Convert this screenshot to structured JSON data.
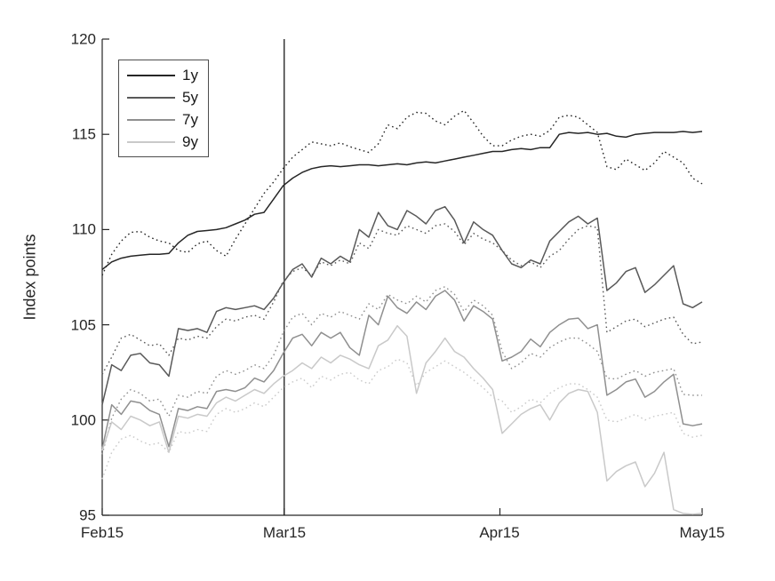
{
  "figure": {
    "background_color": "#ffffff",
    "axis_color": "#262626"
  },
  "chart_data": {
    "type": "line",
    "title": "",
    "xlabel": "",
    "ylabel": "Index points",
    "ylim": [
      95,
      120
    ],
    "y_ticks": [
      95,
      100,
      105,
      110,
      115,
      120
    ],
    "y_tick_labels": [
      "95",
      "100",
      "105",
      "110",
      "115",
      "120"
    ],
    "x_tick_labels": [
      "Feb15",
      "Mar15",
      "Apr15",
      "May15"
    ],
    "x_tick_days": [
      0,
      27,
      59,
      89
    ],
    "x_range_days": [
      0,
      89
    ],
    "grid": false,
    "box": false,
    "event_line_day": 27,
    "legend": {
      "position": "top-left",
      "entries": [
        {
          "label": "1y",
          "color": "#262626"
        },
        {
          "label": "5y",
          "color": "#595959"
        },
        {
          "label": "7y",
          "color": "#8f8f8f"
        },
        {
          "label": "9y",
          "color": "#c9c9c9"
        }
      ]
    },
    "series": [
      {
        "name": "1y",
        "style": "solid",
        "color": "#262626",
        "values": [
          107.9,
          108.3,
          108.5,
          108.6,
          108.65,
          108.7,
          108.7,
          108.75,
          109.3,
          109.7,
          109.9,
          109.95,
          110.0,
          110.1,
          110.3,
          110.5,
          110.8,
          110.9,
          111.6,
          112.3,
          112.7,
          113.0,
          113.2,
          113.3,
          113.35,
          113.3,
          113.35,
          113.4,
          113.4,
          113.35,
          113.4,
          113.45,
          113.4,
          113.5,
          113.55,
          113.5,
          113.6,
          113.7,
          113.8,
          113.9,
          114.0,
          114.1,
          114.1,
          114.2,
          114.25,
          114.2,
          114.3,
          114.3,
          115.0,
          115.1,
          115.05,
          115.1,
          115.0,
          115.05,
          114.9,
          114.85,
          115.0,
          115.05,
          115.1,
          115.1,
          115.1,
          115.15,
          115.1,
          115.15
        ]
      },
      {
        "name": "1y dotted",
        "style": "dotted",
        "color": "#262626",
        "values": [
          107.6,
          108.7,
          109.4,
          109.85,
          109.9,
          109.6,
          109.4,
          109.3,
          108.9,
          108.8,
          109.25,
          109.4,
          108.9,
          108.6,
          109.5,
          110.3,
          111.1,
          111.9,
          112.5,
          113.2,
          113.8,
          114.2,
          114.6,
          114.5,
          114.4,
          114.55,
          114.35,
          114.2,
          114.05,
          114.5,
          115.5,
          115.3,
          115.9,
          116.15,
          116.1,
          115.7,
          115.5,
          115.95,
          116.25,
          115.6,
          114.9,
          114.4,
          114.4,
          114.7,
          114.9,
          115.0,
          114.9,
          115.2,
          115.9,
          116.0,
          115.9,
          115.5,
          115.1,
          113.3,
          113.15,
          113.7,
          113.4,
          113.1,
          113.5,
          114.1,
          113.8,
          113.5,
          112.7,
          112.4
        ]
      },
      {
        "name": "5y",
        "style": "solid",
        "color": "#595959",
        "values": [
          100.8,
          102.9,
          102.6,
          103.4,
          103.5,
          103.0,
          102.9,
          102.3,
          104.8,
          104.7,
          104.8,
          104.6,
          105.7,
          105.9,
          105.8,
          105.9,
          106.0,
          105.8,
          106.4,
          107.2,
          107.9,
          108.2,
          107.5,
          108.5,
          108.2,
          108.6,
          108.3,
          110.0,
          109.6,
          110.9,
          110.2,
          110.0,
          111.0,
          110.7,
          110.3,
          111.0,
          111.2,
          110.5,
          109.3,
          110.4,
          110.0,
          109.7,
          108.9,
          108.2,
          108.0,
          108.4,
          108.2,
          109.4,
          109.9,
          110.4,
          110.7,
          110.3,
          110.6,
          106.8,
          107.2,
          107.8,
          108.0,
          106.7,
          107.1,
          107.6,
          108.1,
          106.1,
          105.9,
          106.2
        ]
      },
      {
        "name": "5y dotted",
        "style": "dotted",
        "color": "#595959",
        "values": [
          102.4,
          103.3,
          104.3,
          104.5,
          104.2,
          103.9,
          104.0,
          103.4,
          104.3,
          104.2,
          104.4,
          104.3,
          104.9,
          105.3,
          105.2,
          105.4,
          105.5,
          105.3,
          106.2,
          107.3,
          107.8,
          108.0,
          107.6,
          108.3,
          108.1,
          108.4,
          108.2,
          109.3,
          109.0,
          110.0,
          109.8,
          109.7,
          110.2,
          110.0,
          109.8,
          110.2,
          110.3,
          109.9,
          109.2,
          109.8,
          109.5,
          109.3,
          108.9,
          108.4,
          108.1,
          108.3,
          108.0,
          108.6,
          108.9,
          109.5,
          110.0,
          110.2,
          110.1,
          104.6,
          104.9,
          105.2,
          105.3,
          104.9,
          105.1,
          105.3,
          105.4,
          104.5,
          104.0,
          104.1
        ]
      },
      {
        "name": "7y",
        "style": "solid",
        "color": "#8f8f8f",
        "values": [
          98.5,
          100.8,
          100.3,
          101.0,
          100.9,
          100.5,
          100.3,
          98.6,
          100.6,
          100.5,
          100.7,
          100.6,
          101.5,
          101.6,
          101.5,
          101.7,
          102.2,
          102.0,
          102.6,
          103.5,
          104.3,
          104.5,
          103.9,
          104.6,
          104.3,
          104.6,
          103.8,
          103.4,
          105.5,
          105.0,
          106.5,
          105.9,
          105.6,
          106.2,
          105.8,
          106.5,
          106.8,
          106.3,
          105.2,
          106.0,
          105.7,
          105.3,
          103.1,
          103.3,
          103.6,
          104.25,
          103.85,
          104.6,
          105.0,
          105.3,
          105.35,
          104.8,
          105.0,
          101.3,
          101.6,
          102.0,
          102.15,
          101.2,
          101.5,
          102.0,
          102.4,
          99.8,
          99.7,
          99.8
        ]
      },
      {
        "name": "7y dotted",
        "style": "dotted",
        "color": "#8f8f8f",
        "values": [
          98.2,
          100.1,
          101.1,
          101.6,
          101.4,
          101.0,
          101.1,
          100.2,
          101.3,
          101.2,
          101.5,
          101.4,
          102.3,
          102.6,
          102.4,
          102.6,
          102.9,
          102.7,
          103.4,
          104.6,
          105.4,
          105.6,
          105.0,
          105.6,
          105.4,
          105.7,
          105.5,
          105.3,
          106.1,
          105.8,
          106.6,
          106.3,
          106.1,
          106.5,
          106.2,
          106.8,
          107.0,
          106.6,
          105.7,
          106.3,
          106.0,
          105.5,
          103.6,
          102.7,
          103.0,
          103.5,
          103.3,
          103.8,
          104.1,
          104.3,
          104.3,
          104.0,
          103.6,
          102.2,
          102.15,
          102.4,
          102.6,
          102.3,
          102.5,
          102.6,
          102.7,
          101.35,
          101.3,
          101.3
        ]
      },
      {
        "name": "9y",
        "style": "solid",
        "color": "#c9c9c9",
        "values": [
          98.4,
          99.9,
          99.5,
          100.2,
          100.0,
          99.7,
          99.9,
          98.3,
          100.2,
          100.1,
          100.3,
          100.2,
          100.9,
          101.2,
          101.0,
          101.3,
          101.6,
          101.4,
          101.9,
          102.3,
          102.6,
          103.0,
          102.7,
          103.3,
          103.0,
          103.4,
          103.2,
          102.9,
          102.7,
          103.9,
          104.2,
          104.95,
          104.4,
          101.4,
          103.0,
          103.6,
          104.3,
          103.6,
          103.3,
          102.7,
          102.2,
          101.6,
          99.3,
          99.8,
          100.3,
          100.6,
          100.8,
          100.0,
          100.9,
          101.4,
          101.6,
          101.5,
          100.4,
          96.8,
          97.3,
          97.6,
          97.8,
          96.5,
          97.2,
          98.3,
          95.3,
          95.1,
          95.05,
          95.1
        ]
      },
      {
        "name": "9y dotted",
        "style": "dotted",
        "color": "#c9c9c9",
        "values": [
          96.9,
          98.3,
          99.0,
          99.2,
          98.9,
          98.7,
          98.8,
          98.3,
          99.4,
          99.3,
          99.5,
          99.4,
          100.3,
          100.6,
          100.4,
          100.6,
          100.9,
          100.7,
          101.2,
          101.7,
          102.0,
          102.2,
          101.7,
          102.3,
          102.1,
          102.4,
          102.5,
          102.1,
          101.9,
          102.6,
          102.8,
          103.2,
          103.0,
          101.8,
          102.5,
          102.8,
          103.1,
          102.8,
          102.5,
          102.1,
          101.7,
          101.2,
          101.0,
          100.4,
          100.7,
          101.1,
          100.9,
          101.4,
          101.7,
          101.9,
          101.9,
          101.6,
          101.2,
          100.0,
          99.9,
          100.1,
          100.3,
          100.0,
          100.2,
          100.3,
          100.4,
          99.3,
          99.1,
          99.2
        ]
      }
    ]
  }
}
